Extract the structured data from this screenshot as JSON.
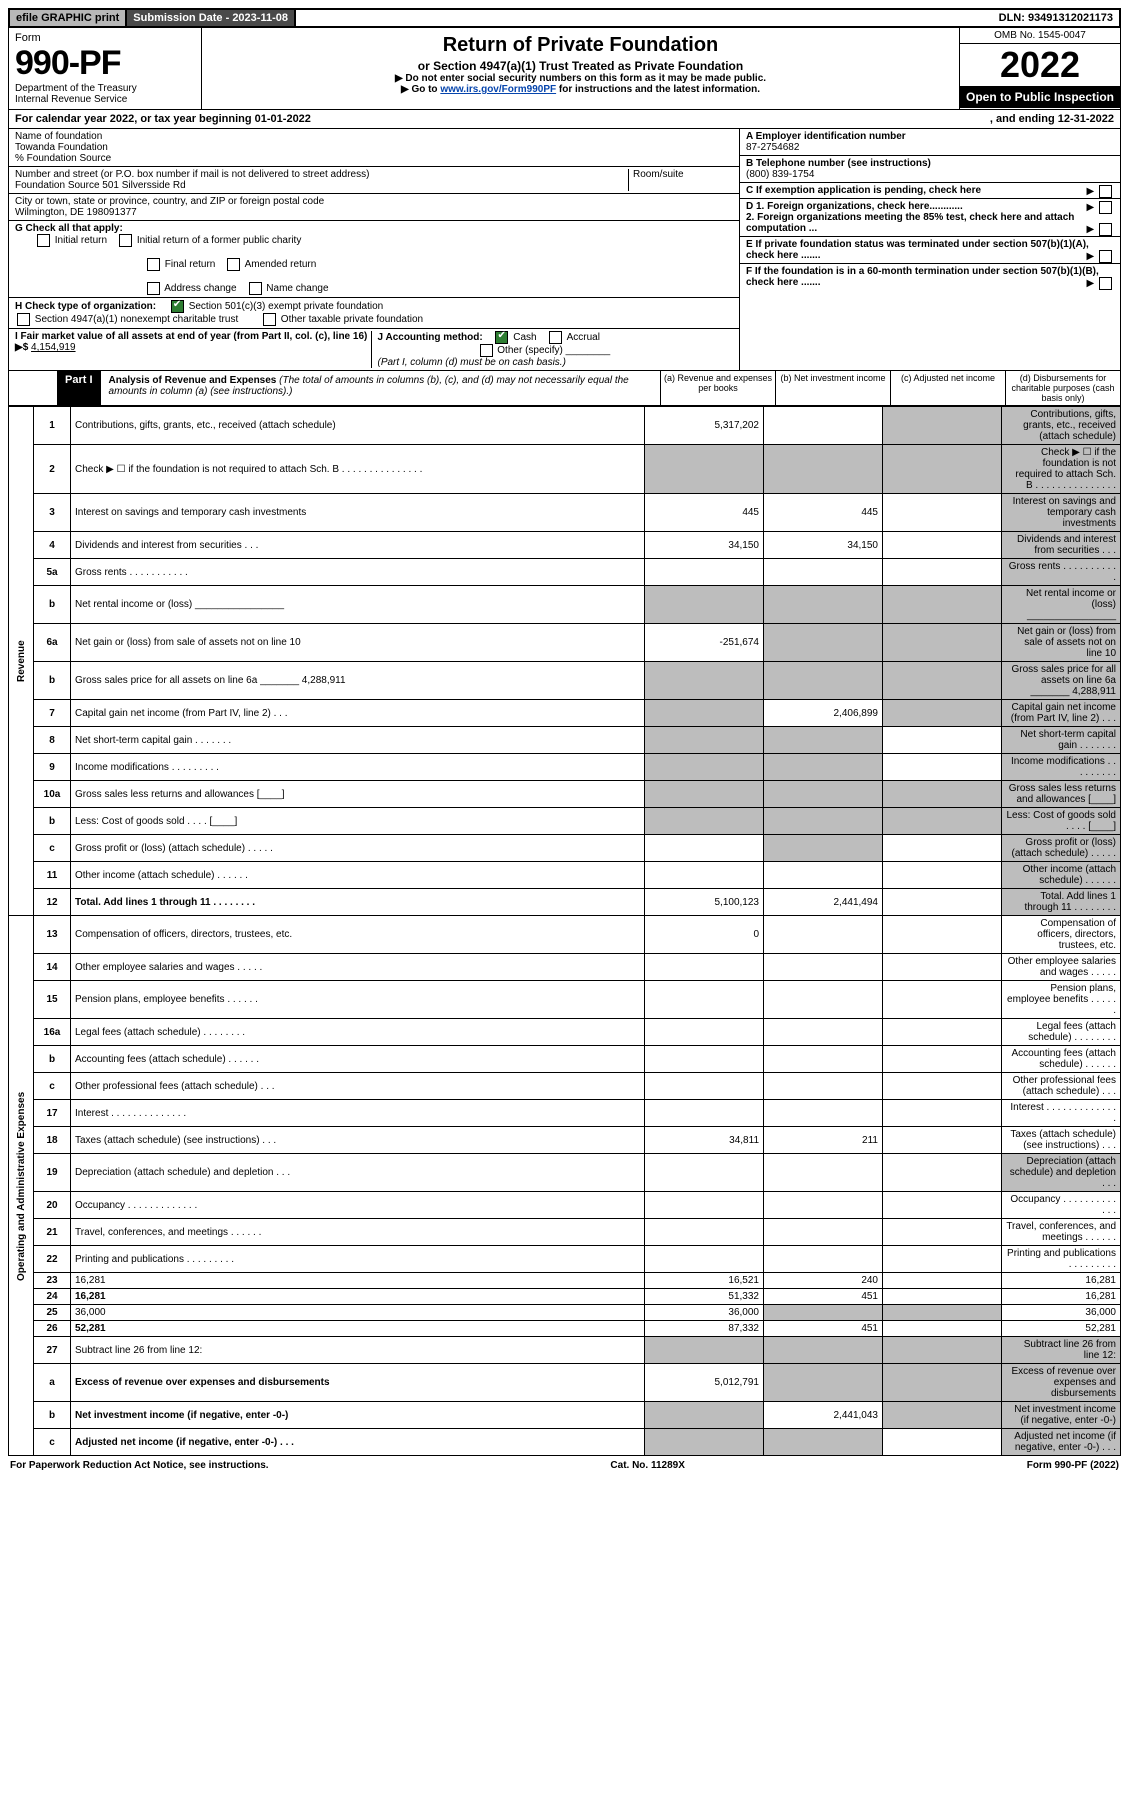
{
  "topbar": {
    "efile": "efile GRAPHIC print",
    "submission": "Submission Date - 2023-11-08",
    "dln": "DLN: 93491312021173"
  },
  "header": {
    "form_label": "Form",
    "form_no": "990-PF",
    "dept": "Department of the Treasury",
    "irs": "Internal Revenue Service",
    "title": "Return of Private Foundation",
    "subtitle": "or Section 4947(a)(1) Trust Treated as Private Foundation",
    "instr1": "▶ Do not enter social security numbers on this form as it may be made public.",
    "instr2_pre": "▶ Go to ",
    "instr2_link": "www.irs.gov/Form990PF",
    "instr2_post": " for instructions and the latest information.",
    "omb": "OMB No. 1545-0047",
    "year": "2022",
    "open": "Open to Public Inspection"
  },
  "calyear": {
    "text": "For calendar year 2022, or tax year beginning 01-01-2022",
    "ending": ", and ending 12-31-2022"
  },
  "info": {
    "name_label": "Name of foundation",
    "name": "Towanda Foundation",
    "care_of": "% Foundation Source",
    "addr_label": "Number and street (or P.O. box number if mail is not delivered to street address)",
    "addr": "Foundation Source 501 Silversside Rd",
    "room_label": "Room/suite",
    "city_label": "City or town, state or province, country, and ZIP or foreign postal code",
    "city": "Wilmington, DE 198091377",
    "ein_label": "A Employer identification number",
    "ein": "87-2754682",
    "tel_label": "B Telephone number (see instructions)",
    "tel": "(800) 839-1754",
    "c_label": "C If exemption application is pending, check here",
    "g_label": "G Check all that apply:",
    "g_opts": [
      "Initial return",
      "Initial return of a former public charity",
      "Final return",
      "Amended return",
      "Address change",
      "Name change"
    ],
    "d1": "D 1. Foreign organizations, check here............",
    "d2": "2. Foreign organizations meeting the 85% test, check here and attach computation ...",
    "h_label": "H Check type of organization:",
    "h1": "Section 501(c)(3) exempt private foundation",
    "h2": "Section 4947(a)(1) nonexempt charitable trust",
    "h3": "Other taxable private foundation",
    "e_label": "E If private foundation status was terminated under section 507(b)(1)(A), check here .......",
    "i_label": "I Fair market value of all assets at end of year (from Part II, col. (c), line 16) ▶$",
    "i_val": "4,154,919",
    "j_label": "J Accounting method:",
    "j_cash": "Cash",
    "j_accrual": "Accrual",
    "j_other": "Other (specify)",
    "j_note": "(Part I, column (d) must be on cash basis.)",
    "f_label": "F If the foundation is in a 60-month termination under section 507(b)(1)(B), check here ......."
  },
  "part1": {
    "label": "Part I",
    "title": "Analysis of Revenue and Expenses",
    "note": "(The total of amounts in columns (b), (c), and (d) may not necessarily equal the amounts in column (a) (see instructions).)",
    "cols": {
      "a": "(a) Revenue and expenses per books",
      "b": "(b) Net investment income",
      "c": "(c) Adjusted net income",
      "d": "(d) Disbursements for charitable purposes (cash basis only)"
    }
  },
  "sidelabels": {
    "rev": "Revenue",
    "exp": "Operating and Administrative Expenses"
  },
  "rows": [
    {
      "n": "1",
      "d": "Contributions, gifts, grants, etc., received (attach schedule)",
      "a": "5,317,202",
      "grey_b": false,
      "grey_c": true,
      "grey_d": true
    },
    {
      "n": "2",
      "d": "Check ▶ ☐ if the foundation is not required to attach Sch. B   .  .  .  .  .  .  .  .  .  .  .  .  .  .  .",
      "grey_a": true,
      "grey_b": true,
      "grey_c": true,
      "grey_d": true
    },
    {
      "n": "3",
      "d": "Interest on savings and temporary cash investments",
      "a": "445",
      "b": "445",
      "grey_d": true
    },
    {
      "n": "4",
      "d": "Dividends and interest from securities   .   .   .",
      "a": "34,150",
      "b": "34,150",
      "grey_d": true
    },
    {
      "n": "5a",
      "d": "Gross rents   .   .   .   .   .   .   .   .   .   .   .",
      "grey_d": true
    },
    {
      "n": "b",
      "d": "Net rental income or (loss) ________________",
      "grey_a": true,
      "grey_b": true,
      "grey_c": true,
      "grey_d": true
    },
    {
      "n": "6a",
      "d": "Net gain or (loss) from sale of assets not on line 10",
      "a": "-251,674",
      "grey_b": true,
      "grey_c": true,
      "grey_d": true
    },
    {
      "n": "b",
      "d": "Gross sales price for all assets on line 6a _______ 4,288,911",
      "grey_a": true,
      "grey_b": true,
      "grey_c": true,
      "grey_d": true,
      "underline_inline": true
    },
    {
      "n": "7",
      "d": "Capital gain net income (from Part IV, line 2)   .   .   .",
      "grey_a": true,
      "b": "2,406,899",
      "grey_c": true,
      "grey_d": true
    },
    {
      "n": "8",
      "d": "Net short-term capital gain   .   .   .   .   .   .   .",
      "grey_a": true,
      "grey_b": true,
      "grey_d": true
    },
    {
      "n": "9",
      "d": "Income modifications  .   .   .   .   .   .   .   .   .",
      "grey_a": true,
      "grey_b": true,
      "grey_d": true
    },
    {
      "n": "10a",
      "d": "Gross sales less returns and allowances  [____]",
      "grey_a": true,
      "grey_b": true,
      "grey_c": true,
      "grey_d": true
    },
    {
      "n": "b",
      "d": "Less: Cost of goods sold   .   .   .   .   [____]",
      "grey_a": true,
      "grey_b": true,
      "grey_c": true,
      "grey_d": true
    },
    {
      "n": "c",
      "d": "Gross profit or (loss) (attach schedule)   .   .   .   .   .",
      "grey_b": true,
      "grey_d": true
    },
    {
      "n": "11",
      "d": "Other income (attach schedule)   .   .   .   .   .   .",
      "grey_d": true
    },
    {
      "n": "12",
      "d": "Total. Add lines 1 through 11   .   .   .   .   .   .   .   .",
      "a": "5,100,123",
      "b": "2,441,494",
      "bold": true,
      "grey_d": true
    },
    {
      "n": "13",
      "d": "Compensation of officers, directors, trustees, etc.",
      "a": "0"
    },
    {
      "n": "14",
      "d": "Other employee salaries and wages   .   .   .   .   ."
    },
    {
      "n": "15",
      "d": "Pension plans, employee benefits  .   .   .   .   .   ."
    },
    {
      "n": "16a",
      "d": "Legal fees (attach schedule)  .   .   .   .   .   .   .   ."
    },
    {
      "n": "b",
      "d": "Accounting fees (attach schedule)  .   .   .   .   .   ."
    },
    {
      "n": "c",
      "d": "Other professional fees (attach schedule)   .   .   ."
    },
    {
      "n": "17",
      "d": "Interest  .   .   .   .   .   .   .   .   .   .   .   .   .   ."
    },
    {
      "n": "18",
      "d": "Taxes (attach schedule) (see instructions)    .   .   .",
      "a": "34,811",
      "b": "211"
    },
    {
      "n": "19",
      "d": "Depreciation (attach schedule) and depletion   .   .   .",
      "grey_d": true
    },
    {
      "n": "20",
      "d": "Occupancy  .   .   .   .   .   .   .   .   .   .   .   .   ."
    },
    {
      "n": "21",
      "d": "Travel, conferences, and meetings  .   .   .   .   .   ."
    },
    {
      "n": "22",
      "d": "Printing and publications  .   .   .   .   .   .   .   .   ."
    },
    {
      "n": "23",
      "d": "16,281",
      "a": "16,521",
      "b": "240"
    },
    {
      "n": "24",
      "d": "16,281",
      "a": "51,332",
      "b": "451",
      "bold": true
    },
    {
      "n": "25",
      "d": "36,000",
      "a": "36,000",
      "grey_b": true,
      "grey_c": true
    },
    {
      "n": "26",
      "d": "52,281",
      "a": "87,332",
      "b": "451",
      "bold": true
    },
    {
      "n": "27",
      "d": "Subtract line 26 from line 12:",
      "grey_a": true,
      "grey_b": true,
      "grey_c": true,
      "grey_d": true
    },
    {
      "n": "a",
      "d": "Excess of revenue over expenses and disbursements",
      "a": "5,012,791",
      "grey_b": true,
      "grey_c": true,
      "grey_d": true,
      "bold": true
    },
    {
      "n": "b",
      "d": "Net investment income (if negative, enter -0-)",
      "grey_a": true,
      "b": "2,441,043",
      "grey_c": true,
      "grey_d": true,
      "bold": true
    },
    {
      "n": "c",
      "d": "Adjusted net income (if negative, enter -0-)   .   .   .",
      "grey_a": true,
      "grey_b": true,
      "grey_d": true,
      "bold": true
    }
  ],
  "footer": {
    "left": "For Paperwork Reduction Act Notice, see instructions.",
    "mid": "Cat. No. 11289X",
    "right": "Form 990-PF (2022)"
  },
  "colors": {
    "grey_bg": "#bdbdbd",
    "link": "#0645ad",
    "check_green": "#2e7d32"
  }
}
